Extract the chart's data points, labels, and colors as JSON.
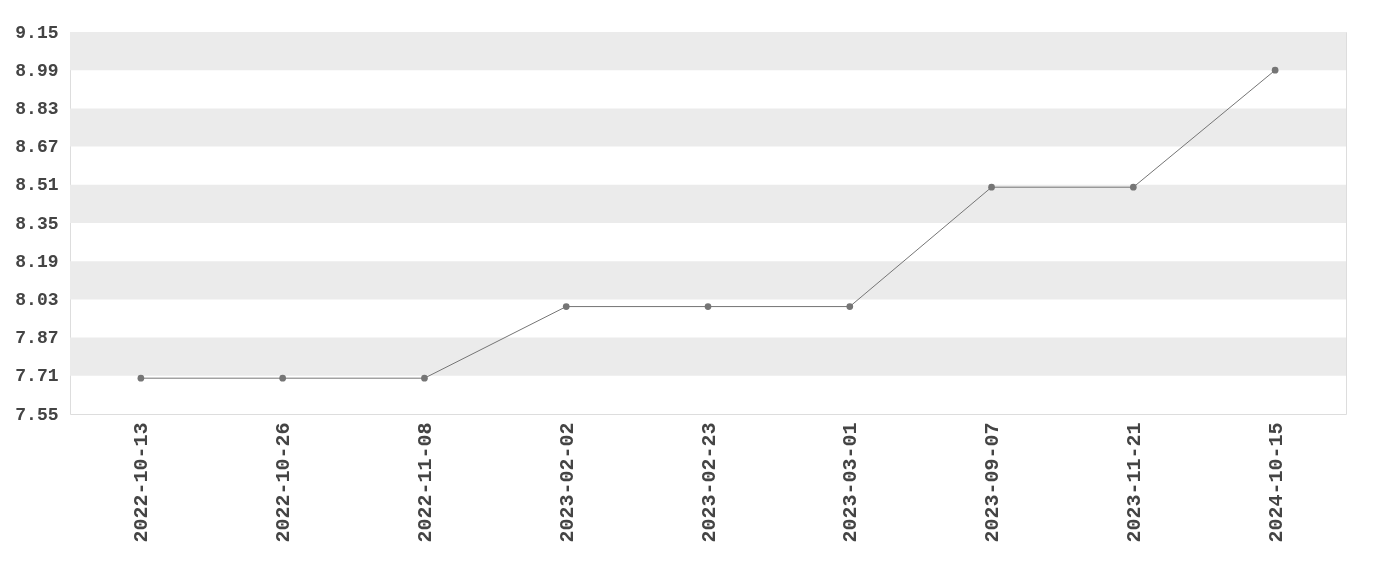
{
  "chart_data": {
    "type": "line",
    "categories": [
      "2022-10-13",
      "2022-10-26",
      "2022-11-08",
      "2023-02-02",
      "2023-02-23",
      "2023-03-01",
      "2023-09-07",
      "2023-11-21",
      "2024-10-15"
    ],
    "series": [
      {
        "color": "#757575",
        "values": [
          7.7,
          7.7,
          7.7,
          8.0,
          8.0,
          8.0,
          8.5,
          8.5,
          8.99
        ]
      }
    ],
    "ylim": [
      7.55,
      9.15
    ],
    "yticks": [
      7.55,
      7.71,
      7.87,
      8.03,
      8.19,
      8.35,
      8.51,
      8.67,
      8.83,
      8.99,
      9.15
    ],
    "bands": [
      {
        "axis": "y",
        "from": 8.99,
        "to": 9.15,
        "color": "#ebebeb"
      },
      {
        "axis": "y",
        "from": 8.67,
        "to": 8.83,
        "color": "#ebebeb"
      },
      {
        "axis": "y",
        "from": 8.35,
        "to": 8.51,
        "color": "#ebebeb"
      },
      {
        "axis": "y",
        "from": 8.03,
        "to": 8.19,
        "color": "#ebebeb"
      },
      {
        "axis": "y",
        "from": 7.71,
        "to": 7.87,
        "color": "#ebebeb"
      }
    ],
    "marker": "circle",
    "line_style": "solid"
  }
}
